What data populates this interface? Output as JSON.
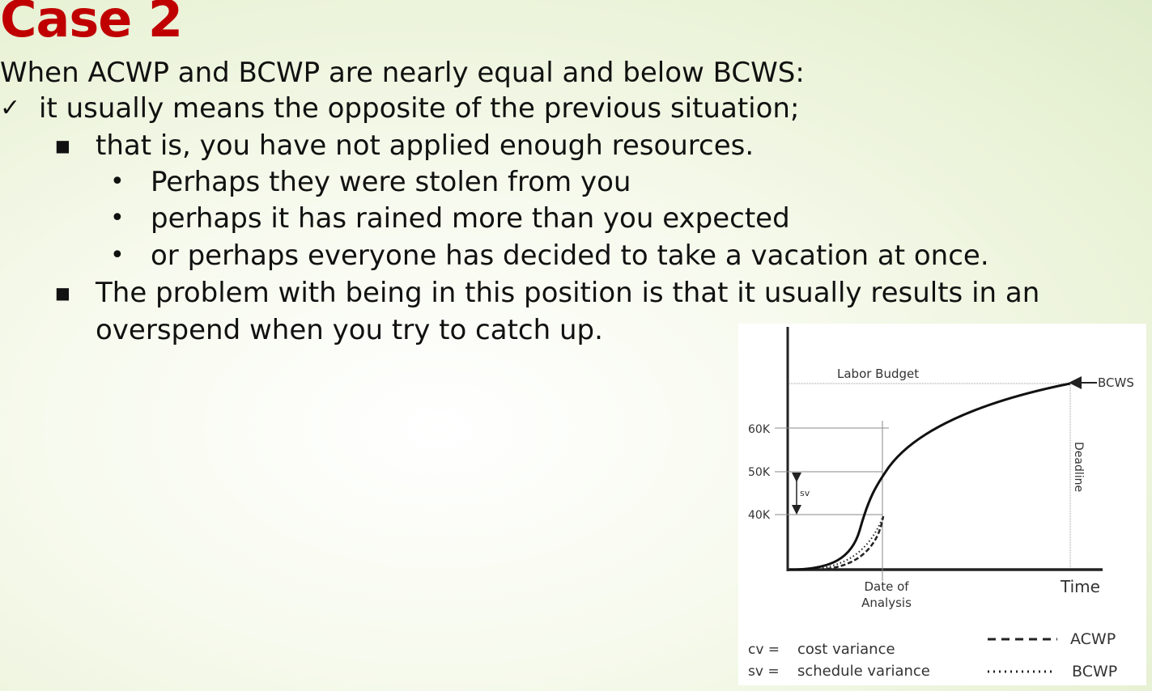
{
  "title": "Case 2",
  "intro": "When ACWP and BCWP are nearly equal and below BCWS:",
  "point": "it usually means the opposite of the previous situation;",
  "sub1": "that is, you have not applied enough resources.",
  "causes": [
    "Perhaps they were stolen from you",
    "perhaps it has rained more than you expected",
    "or perhaps everyone has decided to take a vacation at once."
  ],
  "sub2_line1": "The problem with being in this position is that it usually results in an",
  "sub2_line2": "overspend when you try to catch up.",
  "diagram": {
    "budget_label": "Labor Budget",
    "bcws_label": "BCWS",
    "deadline_label": "Deadline",
    "tick_labels": [
      "60K",
      "50K",
      "40K"
    ],
    "sv_label": "sv",
    "date_label_line1": "Date of",
    "date_label_line2": "Analysis",
    "time_label": "Time",
    "legend": {
      "cv_abbr": "cv =",
      "cv_text": "cost variance",
      "sv_abbr": "sv =",
      "sv_text": "schedule variance",
      "acwp_label": "ACWP",
      "bcwp_label": "BCWP"
    }
  }
}
